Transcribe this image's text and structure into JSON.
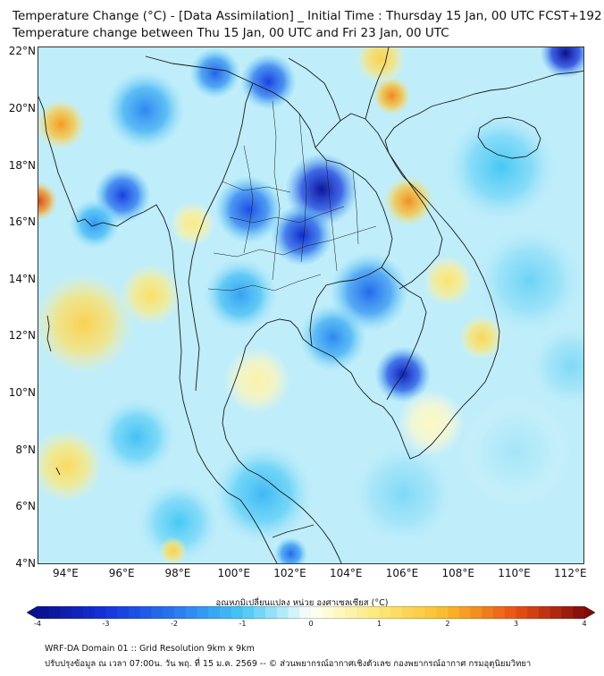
{
  "title": {
    "line1": "Temperature Change (°C) - [Data Assimilation] _ Initial Time : Thursday 15 Jan, 00 UTC FCST+192",
    "line2": "Temperature change between Thu 15 Jan, 00 UTC and Fri 23 Jan, 00 UTC"
  },
  "map": {
    "extent": {
      "lon_min": 93,
      "lon_max": 112.5,
      "lat_min": 4,
      "lat_max": 22.2
    },
    "lat_labels": [
      "22°N",
      "20°N",
      "18°N",
      "16°N",
      "14°N",
      "12°N",
      "10°N",
      "8°N",
      "6°N",
      "4°N"
    ],
    "lat_values": [
      22,
      20,
      18,
      16,
      14,
      12,
      10,
      8,
      6,
      4
    ],
    "lon_labels": [
      "94°E",
      "96°E",
      "98°E",
      "100°E",
      "102°E",
      "104°E",
      "106°E",
      "108°E",
      "110°E",
      "112°E"
    ],
    "lon_values": [
      94,
      96,
      98,
      100,
      102,
      104,
      106,
      108,
      110,
      112
    ],
    "field": [
      {
        "lon": 103.1,
        "lat": 17.2,
        "value": -3.8,
        "spread": 1.3
      },
      {
        "lon": 102.4,
        "lat": 15.6,
        "value": -3.2,
        "spread": 1.1
      },
      {
        "lon": 100.5,
        "lat": 16.5,
        "value": -2.6,
        "spread": 1.2
      },
      {
        "lon": 101.2,
        "lat": 21.0,
        "value": -2.8,
        "spread": 1.0
      },
      {
        "lon": 99.3,
        "lat": 21.3,
        "value": -2.3,
        "spread": 0.9
      },
      {
        "lon": 96.0,
        "lat": 17.0,
        "value": -2.8,
        "spread": 1.0
      },
      {
        "lon": 96.8,
        "lat": 20.0,
        "value": -1.8,
        "spread": 1.4
      },
      {
        "lon": 95.0,
        "lat": 16.0,
        "value": -1.6,
        "spread": 0.9
      },
      {
        "lon": 104.8,
        "lat": 13.6,
        "value": -2.2,
        "spread": 1.4
      },
      {
        "lon": 106.0,
        "lat": 10.7,
        "value": -3.5,
        "spread": 1.0
      },
      {
        "lon": 103.5,
        "lat": 12.0,
        "value": -1.8,
        "spread": 1.2
      },
      {
        "lon": 100.2,
        "lat": 13.5,
        "value": -1.5,
        "spread": 1.3
      },
      {
        "lon": 111.8,
        "lat": 22.0,
        "value": -4.0,
        "spread": 0.9
      },
      {
        "lon": 109.5,
        "lat": 18.0,
        "value": -1.0,
        "spread": 2.0
      },
      {
        "lon": 110.5,
        "lat": 14.0,
        "value": -0.8,
        "spread": 2.0
      },
      {
        "lon": 101.0,
        "lat": 6.5,
        "value": -1.2,
        "spread": 1.8
      },
      {
        "lon": 98.0,
        "lat": 5.5,
        "value": -1.0,
        "spread": 1.5
      },
      {
        "lon": 96.5,
        "lat": 8.5,
        "value": -1.1,
        "spread": 1.4
      },
      {
        "lon": 106.0,
        "lat": 6.5,
        "value": -0.7,
        "spread": 2.0
      },
      {
        "lon": 110.0,
        "lat": 8.0,
        "value": -0.5,
        "spread": 2.0
      },
      {
        "lon": 112.0,
        "lat": 11.0,
        "value": -0.7,
        "spread": 1.6
      },
      {
        "lon": 93.0,
        "lat": 16.8,
        "value": 3.2,
        "spread": 0.7
      },
      {
        "lon": 93.8,
        "lat": 19.5,
        "value": 2.3,
        "spread": 0.9
      },
      {
        "lon": 94.6,
        "lat": 12.5,
        "value": 1.5,
        "spread": 1.8
      },
      {
        "lon": 94.0,
        "lat": 7.5,
        "value": 1.3,
        "spread": 1.3
      },
      {
        "lon": 97.0,
        "lat": 13.5,
        "value": 1.2,
        "spread": 1.1
      },
      {
        "lon": 98.5,
        "lat": 16.0,
        "value": 0.9,
        "spread": 0.8
      },
      {
        "lon": 105.6,
        "lat": 20.5,
        "value": 2.5,
        "spread": 0.7
      },
      {
        "lon": 105.2,
        "lat": 21.8,
        "value": 1.5,
        "spread": 0.9
      },
      {
        "lon": 106.2,
        "lat": 16.8,
        "value": 2.4,
        "spread": 0.9
      },
      {
        "lon": 107.6,
        "lat": 14.0,
        "value": 1.1,
        "spread": 0.9
      },
      {
        "lon": 108.8,
        "lat": 12.0,
        "value": 1.4,
        "spread": 0.8
      },
      {
        "lon": 97.8,
        "lat": 4.5,
        "value": 1.5,
        "spread": 0.5
      },
      {
        "lon": 102.0,
        "lat": 4.4,
        "value": -2.2,
        "spread": 0.6
      },
      {
        "lon": 100.8,
        "lat": 10.5,
        "value": 0.6,
        "spread": 1.2
      },
      {
        "lon": 107.0,
        "lat": 9.0,
        "value": 0.4,
        "spread": 1.2
      }
    ],
    "land_color": "#222222"
  },
  "colorbar": {
    "title": "อุณหภูมิเปลี่ยนแปลง หน่วย องศาเซลเซียส (°C)",
    "ticks": [
      "-4",
      "-3",
      "-2",
      "-1",
      "0",
      "1",
      "2",
      "3",
      "4"
    ],
    "tick_values": [
      -4,
      -3,
      -2,
      -1,
      0,
      1,
      2,
      3,
      4
    ],
    "range": [
      -4,
      4
    ]
  },
  "footer": {
    "line1": "WRF-DA Domain 01 :: Grid Resolution 9km x 9km",
    "line2": "ปรับปรุงข้อมูล ณ เวลา 07:00น. วัน พฤ. ที่ 15 ม.ค. 2569 -- © ส่วนพยากรณ์อากาศเชิงตัวเลข กองพยากรณ์อากาศ กรมอุตุนิยมวิทยา"
  }
}
